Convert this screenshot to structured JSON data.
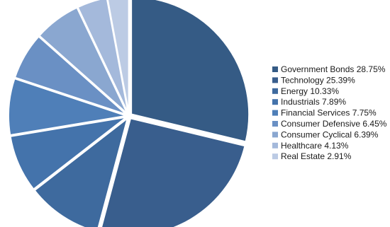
{
  "chart_data": {
    "type": "pie",
    "slices": [
      {
        "label": "Government Bonds",
        "value": 28.75,
        "display": "Government Bonds 28.75%",
        "color": "#355b85"
      },
      {
        "label": "Technology",
        "value": 25.39,
        "display": "Technology 25.39%",
        "color": "#395e8d"
      },
      {
        "label": "Energy",
        "value": 10.33,
        "display": "Energy 10.33%",
        "color": "#3e6a9e"
      },
      {
        "label": "Industrials",
        "value": 7.89,
        "display": "Industrials 7.89%",
        "color": "#4473ab"
      },
      {
        "label": "Financial Services",
        "value": 7.75,
        "display": "Financial Services 7.75%",
        "color": "#4f7fb8"
      },
      {
        "label": "Consumer Defensive",
        "value": 6.45,
        "display": "Consumer Defensive 6.45%",
        "color": "#6a90c4"
      },
      {
        "label": "Consumer Cyclical",
        "value": 6.39,
        "display": "Consumer Cyclical 6.39%",
        "color": "#8aa7d0"
      },
      {
        "label": "Healthcare",
        "value": 4.13,
        "display": "Healthcare 4.13%",
        "color": "#a4b9db"
      },
      {
        "label": "Real Estate",
        "value": 2.91,
        "display": "Real Estate 2.91%",
        "color": "#bccbe4"
      }
    ],
    "legend_position": "right"
  }
}
